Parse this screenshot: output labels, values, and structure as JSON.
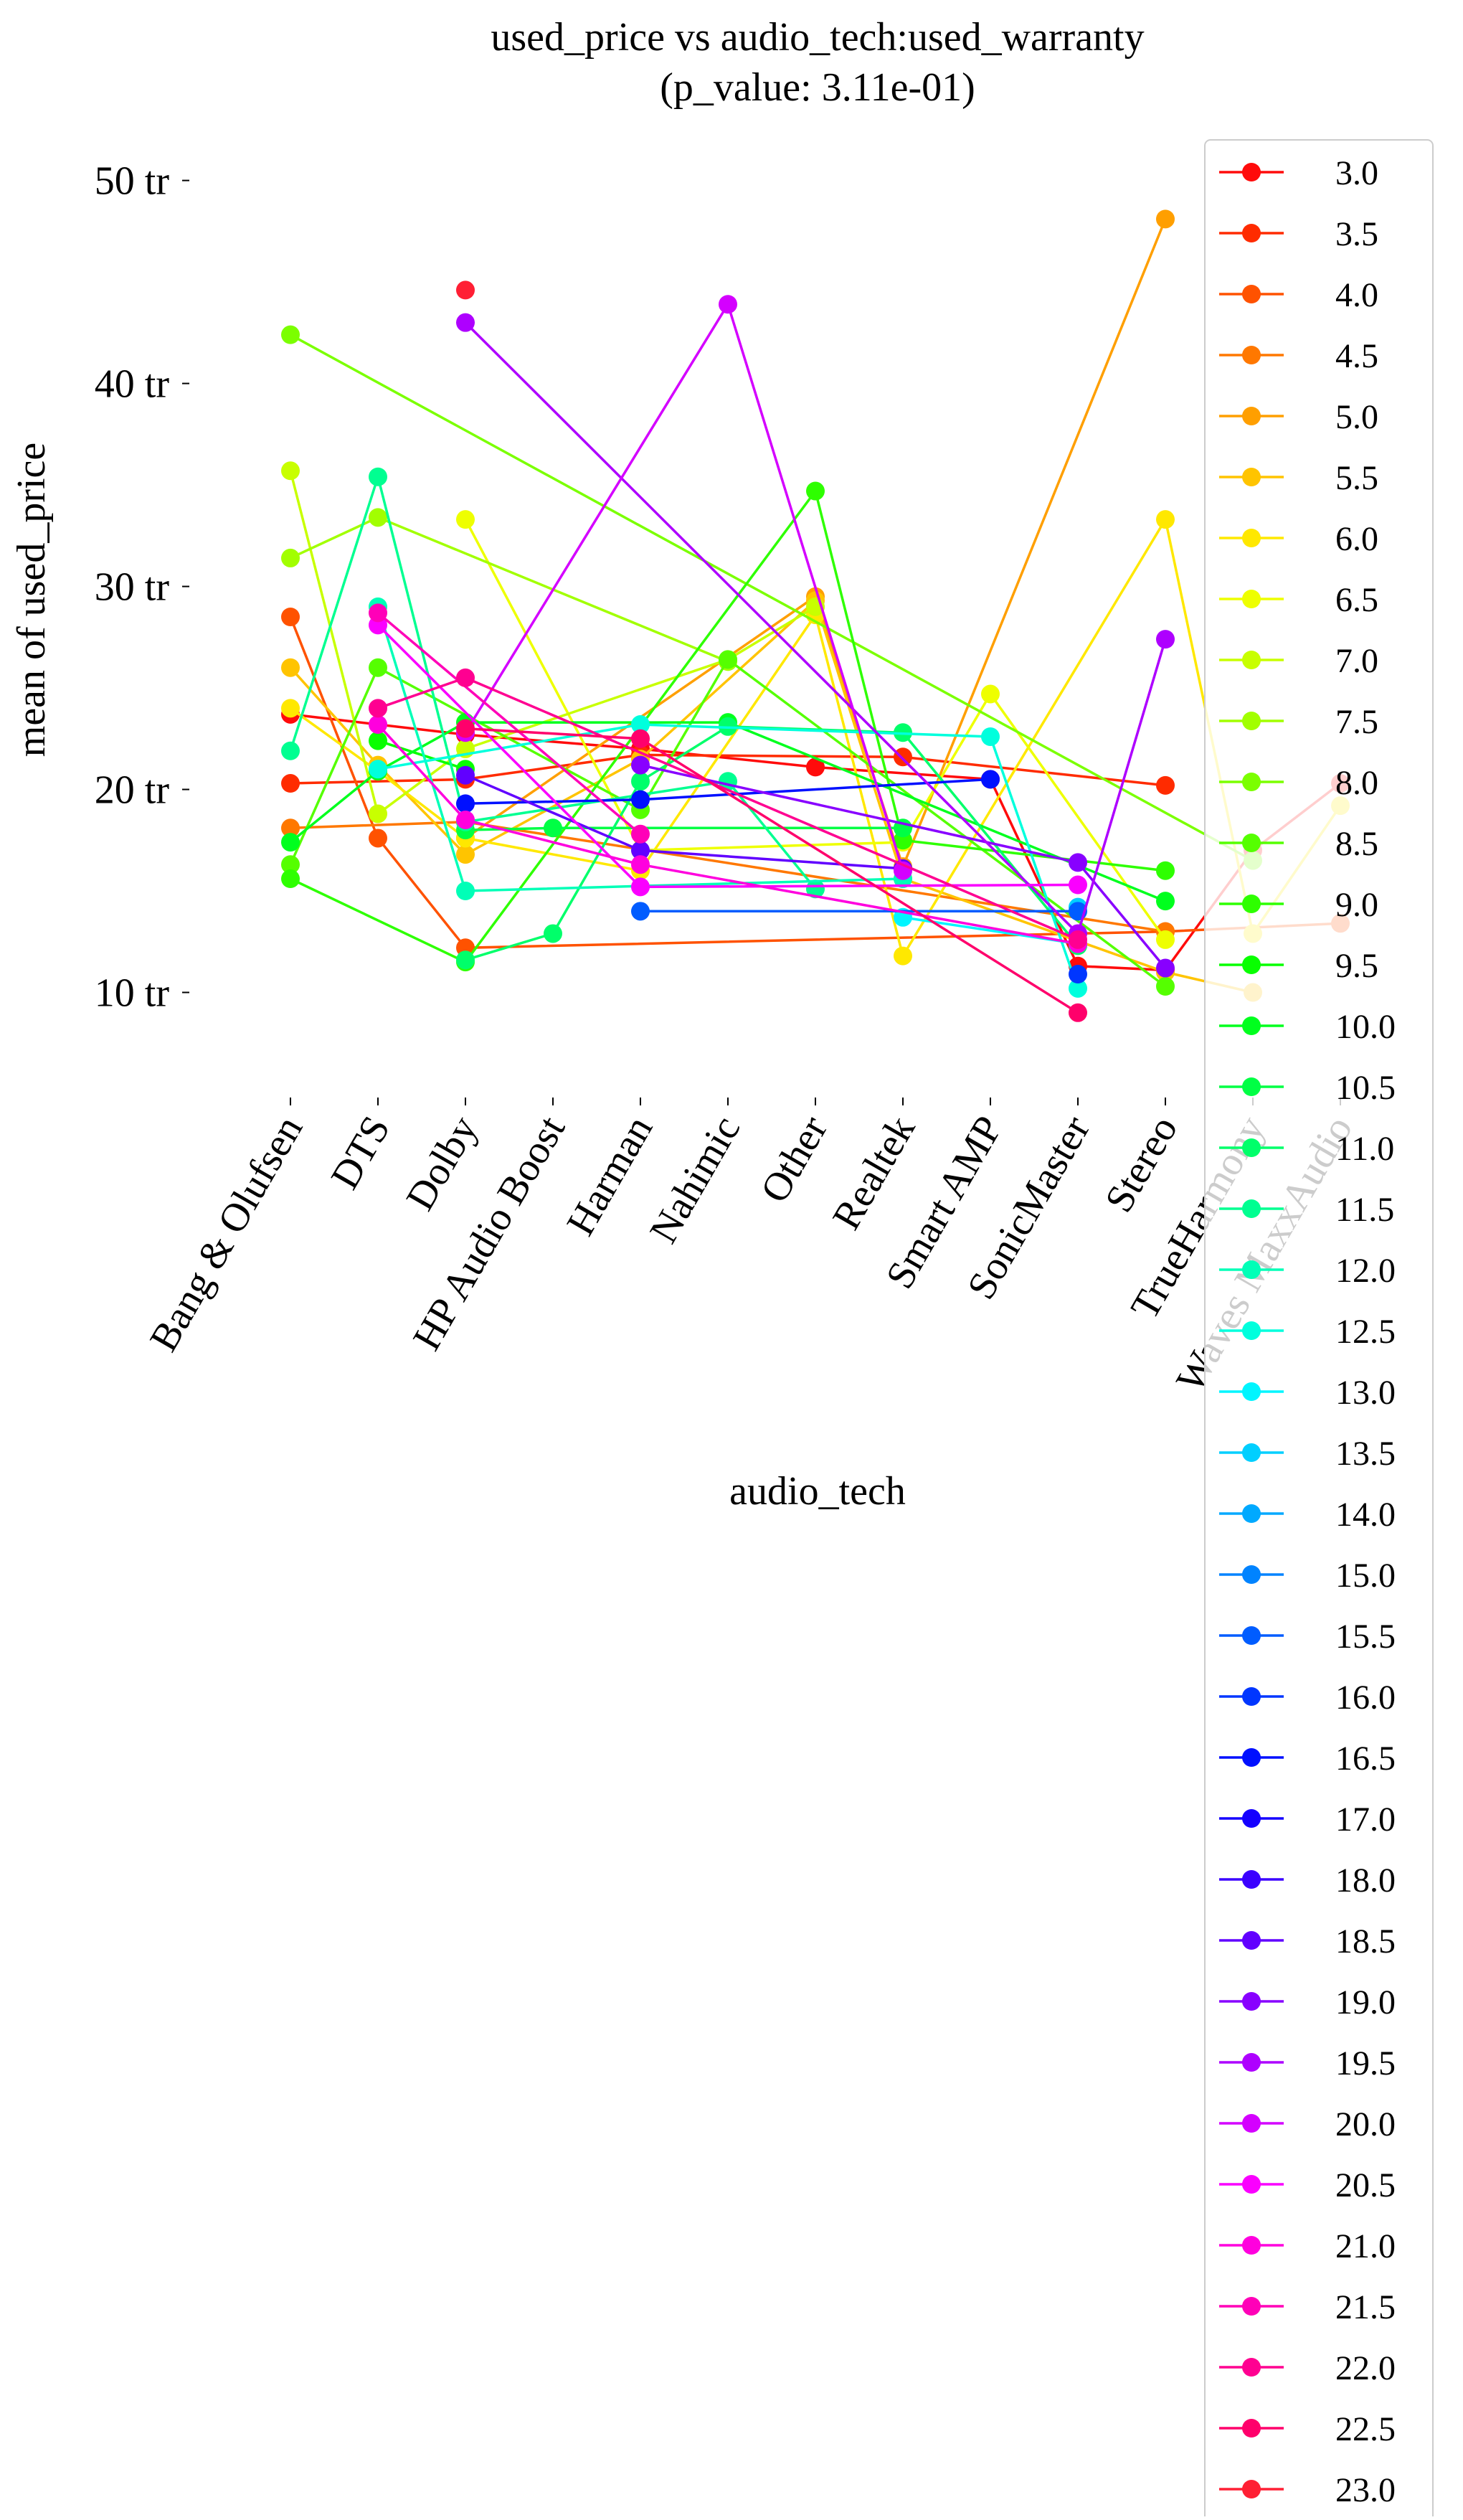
{
  "chart_data": {
    "type": "line",
    "title_line1": "used_price vs audio_tech:used_warranty",
    "title_line2": "(p_value: 3.11e-01)",
    "xlabel": "audio_tech",
    "ylabel": "mean of used_price",
    "ylim": [
      5,
      52
    ],
    "y_ticks": [
      {
        "value": 10,
        "label": "10 tr"
      },
      {
        "value": 20,
        "label": "20 tr"
      },
      {
        "value": 30,
        "label": "30 tr"
      },
      {
        "value": 40,
        "label": "40 tr"
      },
      {
        "value": 50,
        "label": "50 tr"
      }
    ],
    "categories": [
      "Bang & Olufsen",
      "DTS",
      "Dolby",
      "HP Audio Boost",
      "Harman",
      "Nahimic",
      "Other",
      "Realtek",
      "Smart AMP",
      "SonicMaster",
      "Stereo",
      "TrueHarmony",
      "Waves MaxxAudio"
    ],
    "legend_position": "right",
    "grid": false,
    "series": [
      {
        "name": "3.0",
        "color": "#ff0b0b",
        "values": [
          23.7,
          null,
          22.7,
          null,
          22.0,
          null,
          21.1,
          null,
          20.5,
          11.3,
          11.1,
          17.0,
          20.3
        ]
      },
      {
        "name": "3.5",
        "color": "#ff2b00",
        "values": [
          20.3,
          null,
          20.5,
          null,
          21.7,
          null,
          null,
          21.6,
          null,
          null,
          20.2,
          null,
          null
        ]
      },
      {
        "name": "4.0",
        "color": "#ff5200",
        "values": [
          28.5,
          17.6,
          12.2,
          null,
          null,
          null,
          null,
          null,
          null,
          null,
          13.0,
          null,
          13.4
        ]
      },
      {
        "name": "4.5",
        "color": "#ff7800",
        "values": [
          18.1,
          null,
          18.4,
          null,
          null,
          null,
          null,
          null,
          null,
          null,
          13.0,
          null,
          null
        ]
      },
      {
        "name": "5.0",
        "color": "#ff9f00",
        "values": [
          null,
          null,
          17.6,
          null,
          null,
          null,
          29.5,
          16.2,
          null,
          null,
          48.1,
          null,
          null
        ]
      },
      {
        "name": "5.5",
        "color": "#ffc400",
        "values": [
          26.0,
          21.2,
          16.8,
          null,
          21.5,
          null,
          29.3,
          15.6,
          null,
          null,
          11.0,
          10.0,
          null
        ]
      },
      {
        "name": "6.0",
        "color": "#ffe800",
        "values": [
          24.0,
          20.9,
          17.6,
          null,
          16.0,
          null,
          28.6,
          11.8,
          null,
          null,
          33.3,
          12.9,
          19.2
        ]
      },
      {
        "name": "6.5",
        "color": "#eeff00",
        "values": [
          null,
          null,
          33.3,
          null,
          17.0,
          null,
          null,
          17.4,
          24.7,
          null,
          12.6,
          null,
          null
        ]
      },
      {
        "name": "7.0",
        "color": "#c8ff00",
        "values": [
          35.7,
          18.8,
          22.0,
          null,
          null,
          26.4,
          29.0,
          null,
          null,
          null,
          null,
          null,
          null
        ]
      },
      {
        "name": "7.5",
        "color": "#a2ff00",
        "values": [
          31.4,
          33.4,
          null,
          null,
          null,
          26.3,
          null,
          null,
          null,
          null,
          null,
          null,
          null
        ]
      },
      {
        "name": "8.0",
        "color": "#7bff00",
        "values": [
          42.4,
          null,
          null,
          null,
          null,
          null,
          null,
          null,
          null,
          null,
          null,
          16.5,
          null
        ]
      },
      {
        "name": "8.5",
        "color": "#55ff00",
        "values": [
          16.3,
          26.0,
          null,
          null,
          19.0,
          26.4,
          null,
          null,
          null,
          null,
          10.3,
          null,
          null
        ]
      },
      {
        "name": "9.0",
        "color": "#2eff00",
        "values": [
          15.6,
          null,
          11.5,
          null,
          null,
          null,
          34.7,
          17.5,
          null,
          null,
          16.0,
          null,
          null
        ]
      },
      {
        "name": "9.5",
        "color": "#08ff00",
        "values": [
          null,
          22.4,
          21.0,
          null,
          null,
          null,
          null,
          null,
          null,
          null,
          null,
          null,
          null
        ]
      },
      {
        "name": "10.0",
        "color": "#00ff1e",
        "values": [
          17.4,
          20.9,
          23.3,
          null,
          null,
          23.3,
          null,
          null,
          null,
          null,
          14.5,
          null,
          null
        ]
      },
      {
        "name": "10.5",
        "color": "#00ff44",
        "values": [
          null,
          null,
          18.0,
          18.1,
          null,
          null,
          null,
          18.1,
          null,
          null,
          null,
          null,
          null
        ]
      },
      {
        "name": "11.0",
        "color": "#00ff6a",
        "values": [
          null,
          null,
          11.6,
          12.9,
          20.4,
          23.1,
          null,
          22.8,
          null,
          12.3,
          null,
          null,
          null
        ]
      },
      {
        "name": "11.5",
        "color": "#00ff91",
        "values": [
          21.9,
          35.4,
          18.4,
          null,
          null,
          20.4,
          15.1,
          null,
          null,
          null,
          null,
          null,
          null
        ]
      },
      {
        "name": "12.0",
        "color": "#00ffb7",
        "values": [
          null,
          29.0,
          15.0,
          null,
          null,
          null,
          null,
          15.6,
          null,
          null,
          null,
          null,
          null
        ]
      },
      {
        "name": "12.5",
        "color": "#00ffdd",
        "values": [
          null,
          21.0,
          null,
          null,
          23.2,
          null,
          null,
          null,
          22.6,
          10.2,
          null,
          null,
          null
        ]
      },
      {
        "name": "13.0",
        "color": "#00f5ff",
        "values": [
          null,
          null,
          null,
          null,
          null,
          null,
          null,
          13.7,
          null,
          12.4,
          null,
          null,
          null
        ]
      },
      {
        "name": "13.5",
        "color": "#00cfff",
        "values": [
          null,
          null,
          null,
          null,
          null,
          null,
          null,
          null,
          null,
          14.2,
          null,
          null,
          null
        ]
      },
      {
        "name": "14.0",
        "color": "#00a9ff",
        "values": [
          null,
          null,
          null,
          null,
          null,
          null,
          null,
          null,
          null,
          null,
          null,
          null,
          null
        ]
      },
      {
        "name": "15.0",
        "color": "#0083ff",
        "values": [
          null,
          null,
          null,
          null,
          null,
          null,
          null,
          null,
          null,
          null,
          null,
          null,
          null
        ]
      },
      {
        "name": "15.5",
        "color": "#005cff",
        "values": [
          null,
          null,
          null,
          null,
          14.0,
          null,
          null,
          null,
          null,
          14.0,
          null,
          null,
          null
        ]
      },
      {
        "name": "16.0",
        "color": "#0036ff",
        "values": [
          null,
          null,
          null,
          null,
          null,
          null,
          null,
          null,
          null,
          10.9,
          null,
          null,
          null
        ]
      },
      {
        "name": "16.5",
        "color": "#0010ff",
        "values": [
          null,
          null,
          19.3,
          null,
          19.5,
          null,
          null,
          null,
          20.5,
          null,
          null,
          null,
          null
        ]
      },
      {
        "name": "17.0",
        "color": "#1500ff",
        "values": [
          null,
          null,
          null,
          null,
          null,
          null,
          null,
          null,
          null,
          null,
          null,
          null,
          null
        ]
      },
      {
        "name": "18.0",
        "color": "#3b00ff",
        "values": [
          null,
          null,
          null,
          null,
          null,
          null,
          null,
          null,
          null,
          null,
          null,
          null,
          null
        ]
      },
      {
        "name": "18.5",
        "color": "#6100ff",
        "values": [
          null,
          null,
          20.7,
          null,
          17.0,
          null,
          null,
          16.1,
          null,
          null,
          null,
          null,
          null
        ]
      },
      {
        "name": "19.0",
        "color": "#8800ff",
        "values": [
          null,
          null,
          null,
          null,
          21.2,
          null,
          null,
          null,
          null,
          16.4,
          11.2,
          null,
          null
        ]
      },
      {
        "name": "19.5",
        "color": "#ae00ff",
        "values": [
          null,
          null,
          43.0,
          null,
          null,
          null,
          null,
          null,
          null,
          12.9,
          27.4,
          null,
          null
        ]
      },
      {
        "name": "20.0",
        "color": "#d400ff",
        "values": [
          null,
          null,
          22.8,
          null,
          null,
          43.9,
          null,
          16.0,
          null,
          null,
          null,
          null,
          null
        ]
      },
      {
        "name": "20.5",
        "color": "#fa00ff",
        "values": [
          null,
          28.1,
          null,
          null,
          15.2,
          null,
          null,
          null,
          null,
          15.3,
          null,
          null,
          null
        ]
      },
      {
        "name": "21.0",
        "color": "#ff00de",
        "values": [
          null,
          23.2,
          18.5,
          null,
          16.3,
          null,
          null,
          null,
          null,
          12.4,
          null,
          null,
          null
        ]
      },
      {
        "name": "21.5",
        "color": "#ff00b8",
        "values": [
          null,
          28.7,
          null,
          null,
          17.8,
          null,
          null,
          null,
          null,
          null,
          null,
          null,
          null
        ]
      },
      {
        "name": "22.0",
        "color": "#ff0091",
        "values": [
          null,
          24.0,
          25.5,
          null,
          null,
          null,
          null,
          null,
          null,
          12.6,
          null,
          null,
          null
        ]
      },
      {
        "name": "22.5",
        "color": "#ff006b",
        "values": [
          null,
          null,
          23.0,
          null,
          22.5,
          null,
          null,
          null,
          null,
          9.0,
          null,
          null,
          null
        ]
      },
      {
        "name": "23.0",
        "color": "#ff1f34",
        "values": [
          null,
          null,
          44.6,
          null,
          null,
          null,
          null,
          null,
          null,
          null,
          null,
          null,
          null
        ]
      }
    ]
  }
}
